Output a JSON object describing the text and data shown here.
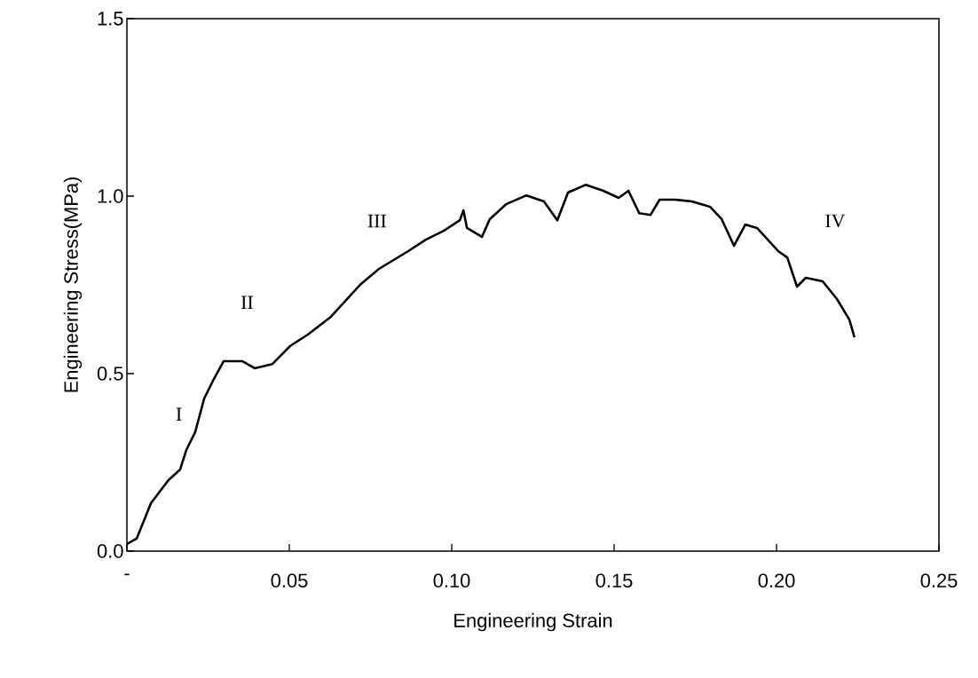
{
  "chart_data": {
    "type": "line",
    "xlabel": "Engineering Strain",
    "ylabel": "Engineering Stress(MPa)",
    "xlim": [
      0,
      0.25
    ],
    "ylim": [
      0,
      1.5
    ],
    "xticks": [
      {
        "value": 0,
        "label": "-"
      },
      0.05,
      {
        "value": 0.1,
        "label": "0.10"
      },
      0.15,
      {
        "value": 0.2,
        "label": "0.20"
      },
      0.25
    ],
    "yticks": [
      {
        "value": 0,
        "label": "0.0"
      },
      0.5,
      {
        "value": 1,
        "label": "1.0"
      },
      1.5
    ],
    "grid": false,
    "marker": "none",
    "line_style": "solid",
    "x": [
      0,
      0.003,
      0.0074,
      0.0128,
      0.0164,
      0.0183,
      0.021,
      0.0238,
      0.0265,
      0.0298,
      0.0355,
      0.0393,
      0.0448,
      0.0503,
      0.0557,
      0.0628,
      0.072,
      0.0776,
      0.0866,
      0.092,
      0.0975,
      0.1025,
      0.1036,
      0.1047,
      0.1093,
      0.1117,
      0.1167,
      0.123,
      0.1284,
      0.1325,
      0.1358,
      0.1413,
      0.1467,
      0.1514,
      0.1544,
      0.1577,
      0.1612,
      0.164,
      0.1686,
      0.174,
      0.1795,
      0.1831,
      0.1869,
      0.1904,
      0.194,
      0.2005,
      0.2033,
      0.2063,
      0.209,
      0.2142,
      0.2186,
      0.2224,
      0.224
    ],
    "series": [
      {
        "color": "#000000",
        "values": [
          0.02,
          0.035,
          0.135,
          0.2,
          0.23,
          0.285,
          0.335,
          0.43,
          0.48,
          0.535,
          0.535,
          0.515,
          0.527,
          0.578,
          0.61,
          0.66,
          0.752,
          0.795,
          0.845,
          0.877,
          0.902,
          0.932,
          0.96,
          0.91,
          0.885,
          0.935,
          0.977,
          1.002,
          0.985,
          0.932,
          1.01,
          1.032,
          1.015,
          0.995,
          1.015,
          0.952,
          0.947,
          0.99,
          0.99,
          0.985,
          0.97,
          0.935,
          0.86,
          0.92,
          0.91,
          0.845,
          0.827,
          0.745,
          0.77,
          0.76,
          0.71,
          0.652,
          0.602
        ]
      }
    ],
    "annotations": [
      "I",
      "II",
      "III",
      "IV"
    ]
  }
}
